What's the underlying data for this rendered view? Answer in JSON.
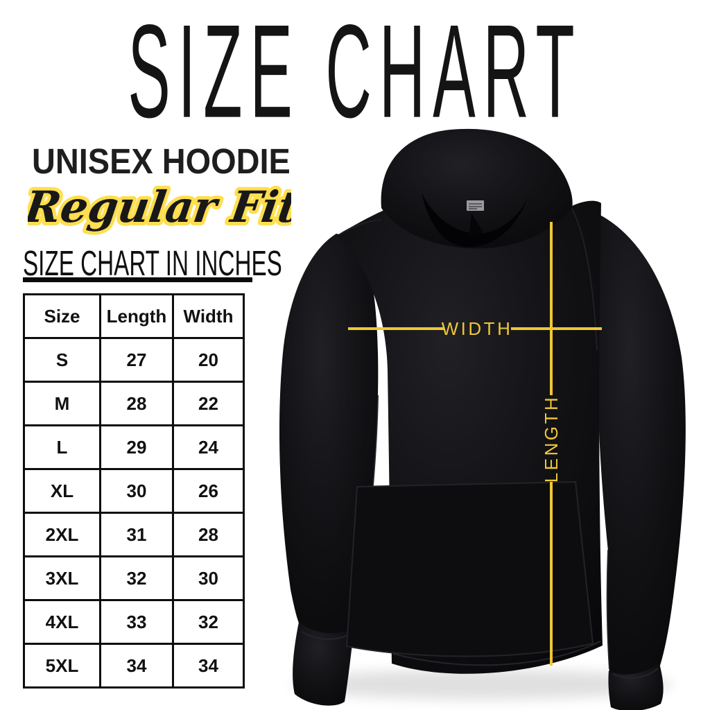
{
  "page_title": "SIZE CHART",
  "product": {
    "name": "UNISEX HOODIE",
    "fit": "Regular Fit"
  },
  "table_section": {
    "heading": "SIZE CHART IN INCHES"
  },
  "size_table": {
    "columns": [
      "Size",
      "Length",
      "Width"
    ],
    "rows": [
      [
        "S",
        "27",
        "20"
      ],
      [
        "M",
        "28",
        "22"
      ],
      [
        "L",
        "29",
        "24"
      ],
      [
        "XL",
        "30",
        "26"
      ],
      [
        "2XL",
        "31",
        "28"
      ],
      [
        "3XL",
        "32",
        "30"
      ],
      [
        "4XL",
        "33",
        "32"
      ],
      [
        "5XL",
        "34",
        "34"
      ]
    ]
  },
  "diagram": {
    "width_label": "WIDTH",
    "length_label": "LENGTH",
    "line_color": "#F0C636",
    "script_outline_color": "#FFDE4F"
  },
  "chart_data": {
    "type": "table",
    "title": "SIZE CHART IN INCHES",
    "subtitle": "UNISEX HOODIE Regular Fit",
    "units": "inches",
    "columns": [
      "Size",
      "Length",
      "Width"
    ],
    "rows": [
      [
        "S",
        27,
        20
      ],
      [
        "M",
        28,
        22
      ],
      [
        "L",
        29,
        24
      ],
      [
        "XL",
        30,
        26
      ],
      [
        "2XL",
        31,
        28
      ],
      [
        "3XL",
        32,
        30
      ],
      [
        "4XL",
        33,
        32
      ],
      [
        "5XL",
        34,
        34
      ]
    ]
  }
}
